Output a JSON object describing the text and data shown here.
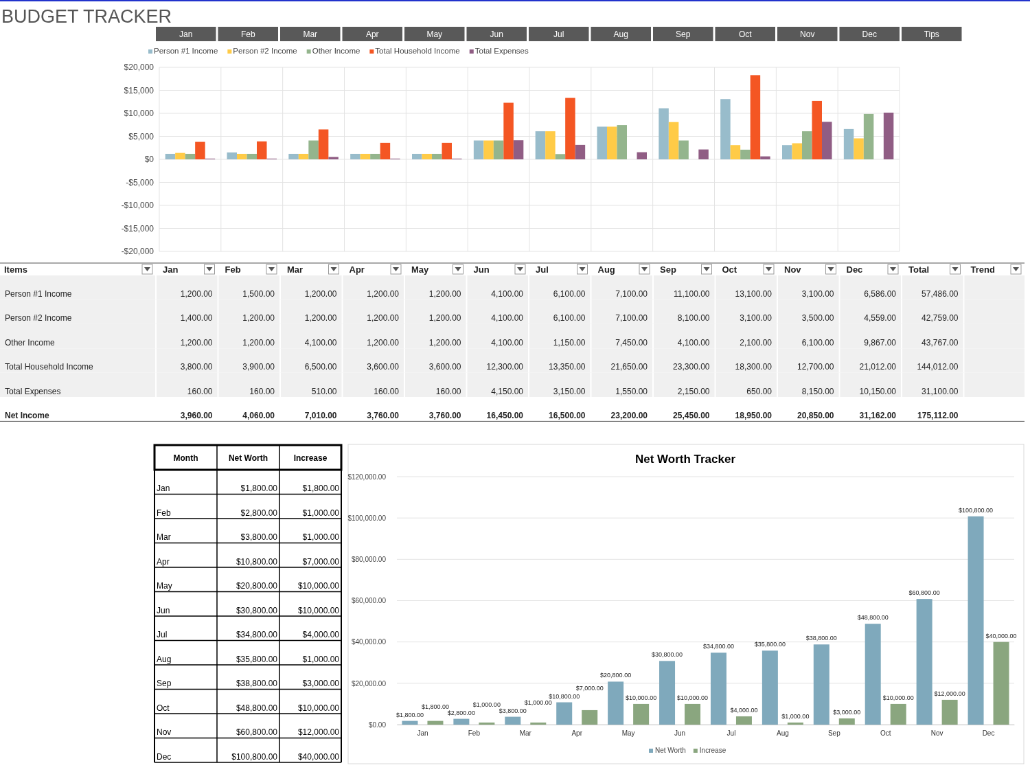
{
  "chart_data": [
    {
      "type": "bar",
      "title": "BUDGET TRACKER",
      "categories": [
        "Jan",
        "Feb",
        "Mar",
        "Apr",
        "May",
        "Jun",
        "Jul",
        "Aug",
        "Sep",
        "Oct",
        "Nov",
        "Dec"
      ],
      "series": [
        {
          "name": "Person #1 Income",
          "color": "#98bccb",
          "values": [
            1200,
            1500,
            1200,
            1200,
            1200,
            4100,
            6100,
            7100,
            11100,
            13100,
            3100,
            6586
          ],
          "value_labels": [
            "1,200.00",
            "1,500.00",
            "1,200.00",
            "1,200.00",
            "1,200.00",
            "4,100.00",
            "6,100.00",
            "7,100.00",
            "11,100.00",
            "13,100.00",
            "3,100.00",
            "6,586.00"
          ]
        },
        {
          "name": "Person #2 Income",
          "color": "#ffcb47",
          "values": [
            1400,
            1200,
            1200,
            1200,
            1200,
            4100,
            6100,
            7100,
            8100,
            3100,
            3500,
            4559
          ],
          "value_labels": [
            "1,400.00",
            "1,200.00",
            "1,200.00",
            "1,200.00",
            "1,200.00",
            "4,100.00",
            "6,100.00",
            "7,100.00",
            "8,100.00",
            "3,100.00",
            "3,500.00",
            "4,559.00"
          ]
        },
        {
          "name": "Other Income",
          "color": "#94b58d",
          "values": [
            1200,
            1200,
            4100,
            1200,
            1200,
            4100,
            1150,
            7450,
            4100,
            2100,
            6100,
            9867
          ],
          "value_labels": [
            "1,200.00",
            "1,200.00",
            "4,100.00",
            "1,200.00",
            "1,200.00",
            "4,100.00",
            "1,150.00",
            "7,450.00",
            "4,100.00",
            "2,100.00",
            "6,100.00",
            "9,867.00"
          ]
        },
        {
          "name": "Total Household Income",
          "color": "#f45623",
          "values": [
            3800,
            3900,
            6500,
            3600,
            3600,
            12300,
            13350,
            null,
            null,
            18300,
            12700,
            null
          ],
          "value_labels": [
            "3,800.00",
            "3,900.00",
            "6,500.00",
            "3,600.00",
            "3,600.00",
            "12,300.00",
            "13,350.00",
            "21,650.00",
            "23,300.00",
            "18,300.00",
            "12,700.00",
            "21,012.00"
          ]
        },
        {
          "name": "Total Expenses",
          "color": "#905d84",
          "values": [
            160,
            160,
            510,
            160,
            160,
            4150,
            3150,
            1550,
            2150,
            650,
            8150,
            10150
          ],
          "value_labels": [
            "160.00",
            "160.00",
            "510.00",
            "160.00",
            "160.00",
            "4,150.00",
            "3,150.00",
            "1,550.00",
            "2,150.00",
            "650.00",
            "8,150.00",
            "10,150.00"
          ]
        }
      ],
      "annotations": [
        "Tips",
        "Items",
        "Total",
        "Trend",
        "Net Income",
        "57,486.00",
        "42,759.00",
        "43,767.00",
        "144,012.00",
        "31,100.00",
        "175,112.00",
        "3,960.00",
        "4,060.00",
        "7,010.00",
        "3,760.00",
        "3,760.00",
        "16,450.00",
        "16,500.00",
        "23,200.00",
        "25,450.00",
        "18,950.00",
        "20,850.00",
        "31,162.00"
      ],
      "ylim": [
        -20000,
        20000
      ],
      "yticks": [
        {
          "value": -20000,
          "label": "-$20,000"
        },
        {
          "value": -15000,
          "label": "-$15,000"
        },
        {
          "value": -10000,
          "label": "-$10,000"
        },
        {
          "value": -5000,
          "label": "-$5,000"
        },
        {
          "value": 0,
          "label": "$0"
        },
        {
          "value": 5000,
          "label": "$5,000"
        },
        {
          "value": 10000,
          "label": "$10,000"
        },
        {
          "value": 15000,
          "label": "$15,000"
        },
        {
          "value": 20000,
          "label": "$20,000"
        }
      ],
      "grid": true,
      "legend": "top"
    },
    {
      "type": "bar",
      "title": "Net Worth Tracker",
      "categories": [
        "Jan",
        "Feb",
        "Mar",
        "Apr",
        "May",
        "Jun",
        "Jul",
        "Aug",
        "Sep",
        "Oct",
        "Nov",
        "Dec"
      ],
      "series": [
        {
          "name": "Net Worth",
          "color": "#7fa9bc",
          "values": [
            1800,
            2800,
            3800,
            10800,
            20800,
            30800,
            34800,
            35800,
            38800,
            48800,
            60800,
            100800
          ],
          "value_labels": [
            "$1,800.00",
            "$2,800.00",
            "$3,800.00",
            "$10,800.00",
            "$20,800.00",
            "$30,800.00",
            "$34,800.00",
            "$35,800.00",
            "$38,800.00",
            "$48,800.00",
            "$60,800.00",
            "$100,800.00"
          ]
        },
        {
          "name": "Increase",
          "color": "#8aa67f",
          "values": [
            1800,
            1000,
            1000,
            7000,
            10000,
            10000,
            4000,
            1000,
            3000,
            10000,
            12000,
            40000
          ],
          "value_labels": [
            "$1,800.00",
            "$1,000.00",
            "$1,000.00",
            "$7,000.00",
            "$10,000.00",
            "$10,000.00",
            "$4,000.00",
            "$1,000.00",
            "$3,000.00",
            "$10,000.00",
            "$12,000.00",
            "$40,000.00"
          ]
        }
      ],
      "annotations": [
        "Month"
      ],
      "ylim": [
        0,
        120000
      ],
      "yticks": [
        {
          "value": 0,
          "label": "$0.00"
        },
        {
          "value": 20000,
          "label": "$20,000.00"
        },
        {
          "value": 40000,
          "label": "$40,000.00"
        },
        {
          "value": 60000,
          "label": "$60,000.00"
        },
        {
          "value": 80000,
          "label": "$80,000.00"
        },
        {
          "value": 100000,
          "label": "$100,000.00"
        },
        {
          "value": 120000,
          "label": "$120,000.00"
        }
      ],
      "grid": "y",
      "legend": "bottom"
    }
  ]
}
